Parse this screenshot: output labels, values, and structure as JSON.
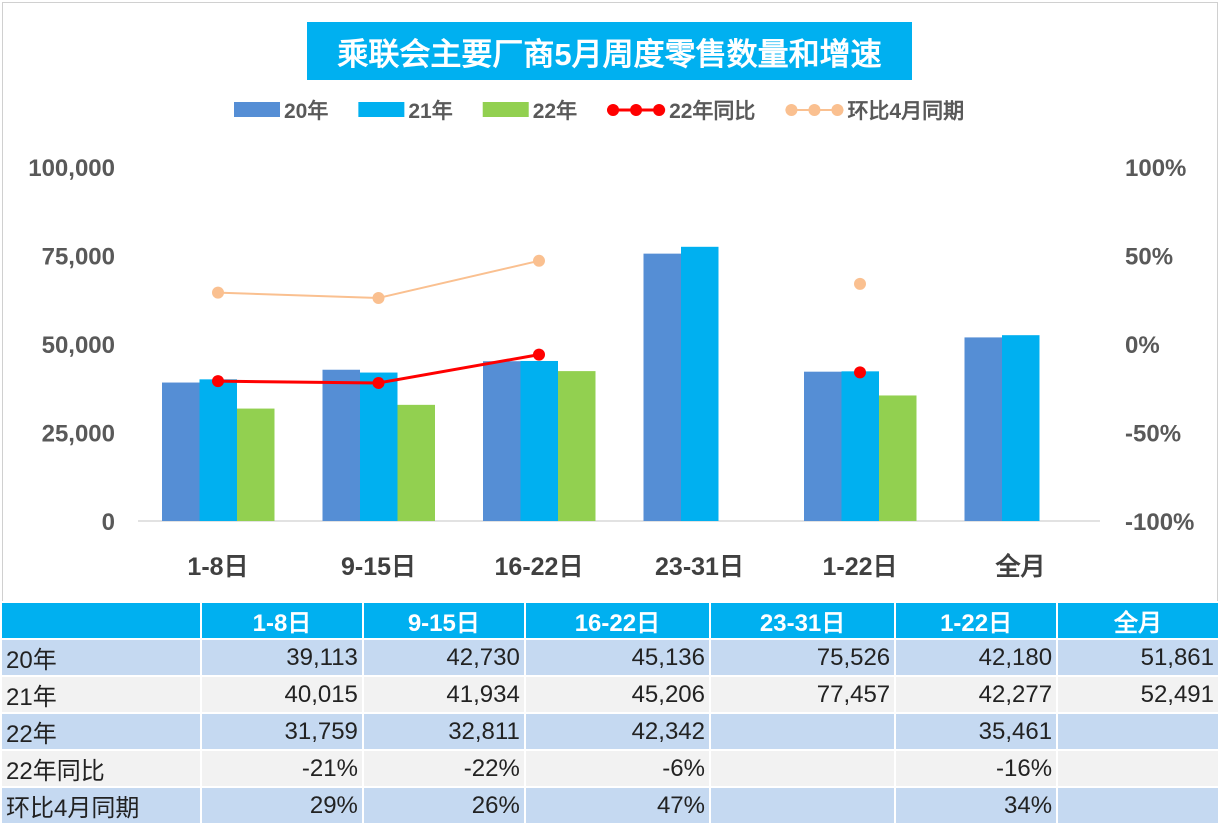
{
  "chart_data": {
    "type": "bar+line",
    "title": "乘联会主要厂商5月周度零售数量和增速",
    "categories": [
      "1-8日",
      "9-15日",
      "16-22日",
      "23-31日",
      "1-22日",
      "全月"
    ],
    "series": [
      {
        "name": "20年",
        "type": "bar",
        "color": "#558ED5",
        "values": [
          39113,
          42730,
          45136,
          75526,
          42180,
          51861
        ]
      },
      {
        "name": "21年",
        "type": "bar",
        "color": "#00B0F0",
        "values": [
          40015,
          41934,
          45206,
          77457,
          42277,
          52491
        ]
      },
      {
        "name": "22年",
        "type": "bar",
        "color": "#92D050",
        "values": [
          31759,
          32811,
          42342,
          null,
          35461,
          null
        ]
      },
      {
        "name": "22年同比",
        "type": "line",
        "axis": "right",
        "color": "#FF0000",
        "values": [
          -21,
          -22,
          -6,
          null,
          -16,
          null
        ]
      },
      {
        "name": "环比4月同期",
        "type": "line",
        "axis": "right",
        "color": "#FAC090",
        "values": [
          29,
          26,
          47,
          null,
          34,
          null
        ]
      }
    ],
    "y_left": {
      "range": [
        0,
        100000
      ],
      "ticks": [
        "0",
        "25,000",
        "50,000",
        "75,000",
        "100,000"
      ]
    },
    "y_right": {
      "range": [
        -100,
        100
      ],
      "ticks": [
        "-100%",
        "-50%",
        "0%",
        "50%",
        "100%"
      ]
    },
    "legend": "top"
  },
  "table": {
    "header": [
      "",
      "1-8日",
      "9-15日",
      "16-22日",
      "23-31日",
      "1-22日",
      "全月"
    ],
    "rows": [
      [
        "20年",
        "39,113",
        "42,730",
        "45,136",
        "75,526",
        "42,180",
        "51,861"
      ],
      [
        "21年",
        "40,015",
        "41,934",
        "45,206",
        "77,457",
        "42,277",
        "52,491"
      ],
      [
        "22年",
        "31,759",
        "32,811",
        "42,342",
        "",
        "35,461",
        ""
      ],
      [
        "22年同比",
        "-21%",
        "-22%",
        "-6%",
        "",
        "-16%",
        ""
      ],
      [
        "环比4月同期",
        "29%",
        "26%",
        "47%",
        "",
        "34%",
        ""
      ]
    ]
  }
}
